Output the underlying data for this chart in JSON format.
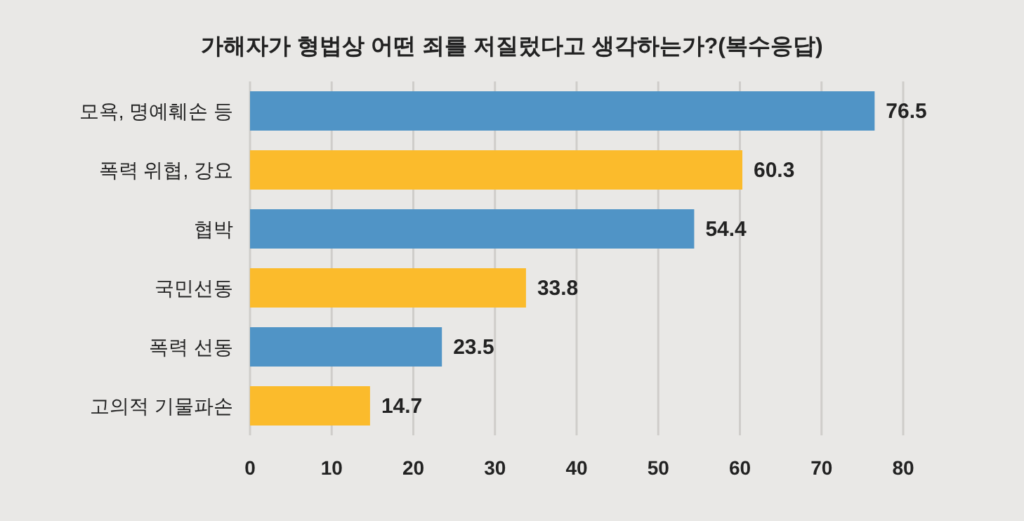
{
  "chart_data": {
    "type": "bar",
    "orientation": "horizontal",
    "title": "가해자가 형법상 어떤 죄를 저질렀다고 생각하는가?(복수응답)",
    "categories": [
      "모욕, 명예훼손 등",
      "폭력 위협, 강요",
      "협박",
      "국민선동",
      "폭력 선동",
      "고의적 기물파손"
    ],
    "values": [
      76.5,
      60.3,
      54.4,
      33.8,
      23.5,
      14.7
    ],
    "colors": [
      "#5094c6",
      "#fbbb2c",
      "#5094c6",
      "#fbbb2c",
      "#5094c6",
      "#fbbb2c"
    ],
    "xlim": [
      0,
      80
    ],
    "xticks": [
      0,
      10,
      20,
      30,
      40,
      50,
      60,
      70,
      80
    ],
    "grid": "x",
    "data_labels": true
  }
}
